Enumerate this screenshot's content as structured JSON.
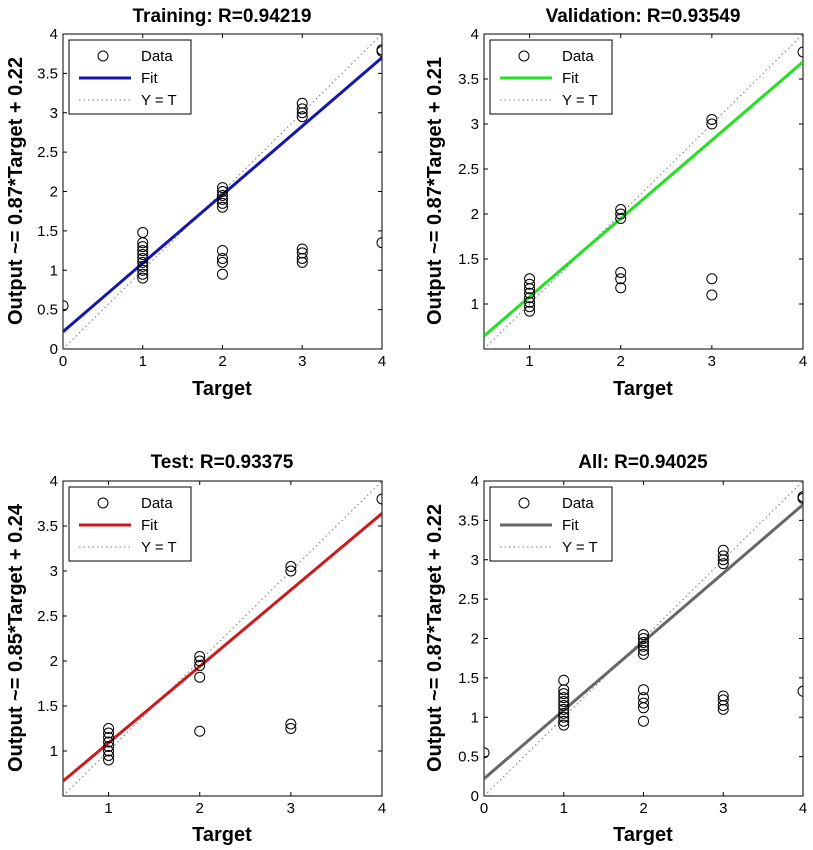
{
  "chart_data": [
    {
      "type": "scatter",
      "title": "Training: R=0.94219",
      "xlabel": "Target",
      "ylabel": "Output ~= 0.87*Target + 0.22",
      "xlim": [
        0,
        4
      ],
      "ylim": [
        0,
        4
      ],
      "xticks": [
        "0",
        "1",
        "2",
        "3",
        "4"
      ],
      "yticks": [
        "0",
        "0.5",
        "1",
        "1.5",
        "2",
        "2.5",
        "3",
        "3.5",
        "4"
      ],
      "fit": {
        "slope": 0.87,
        "intercept": 0.22,
        "color": "#1515b0"
      },
      "legend": {
        "position": "top-left",
        "entries": [
          "Data",
          "Fit",
          "Y = T"
        ]
      },
      "series": [
        {
          "name": "Data",
          "points": [
            [
              0,
              0.55
            ],
            [
              1,
              0.9
            ],
            [
              1,
              0.95
            ],
            [
              1,
              1.0
            ],
            [
              1,
              1.05
            ],
            [
              1,
              1.1
            ],
            [
              1,
              1.15
            ],
            [
              1,
              1.2
            ],
            [
              1,
              1.25
            ],
            [
              1,
              1.3
            ],
            [
              1,
              1.35
            ],
            [
              1,
              1.48
            ],
            [
              2,
              0.95
            ],
            [
              2,
              1.1
            ],
            [
              2,
              1.15
            ],
            [
              2,
              1.25
            ],
            [
              2,
              1.8
            ],
            [
              2,
              1.85
            ],
            [
              2,
              1.9
            ],
            [
              2,
              1.95
            ],
            [
              2,
              2.0
            ],
            [
              2,
              2.05
            ],
            [
              3,
              1.1
            ],
            [
              3,
              1.15
            ],
            [
              3,
              1.22
            ],
            [
              3,
              1.27
            ],
            [
              3,
              2.95
            ],
            [
              3,
              3.0
            ],
            [
              3,
              3.05
            ],
            [
              3,
              3.12
            ],
            [
              4,
              1.35
            ],
            [
              4,
              3.78
            ],
            [
              4,
              3.8
            ]
          ]
        },
        {
          "name": "Fit",
          "points": [
            [
              0,
              0.22
            ],
            [
              4,
              3.7
            ]
          ]
        },
        {
          "name": "Y = T",
          "points": [
            [
              0,
              0
            ],
            [
              4,
              4
            ]
          ]
        }
      ]
    },
    {
      "type": "scatter",
      "title": "Validation: R=0.93549",
      "xlabel": "Target",
      "ylabel": "Output ~= 0.87*Target + 0.21",
      "xlim": [
        0.5,
        4
      ],
      "ylim": [
        0.5,
        4
      ],
      "xticks": [
        "1",
        "2",
        "3",
        "4"
      ],
      "yticks": [
        "1",
        "1.5",
        "2",
        "2.5",
        "3",
        "3.5",
        "4"
      ],
      "fit": {
        "slope": 0.87,
        "intercept": 0.21,
        "color": "#22e022"
      },
      "legend": {
        "position": "top-left",
        "entries": [
          "Data",
          "Fit",
          "Y = T"
        ]
      },
      "series": [
        {
          "name": "Data",
          "points": [
            [
              1,
              0.92
            ],
            [
              1,
              0.97
            ],
            [
              1,
              1.02
            ],
            [
              1,
              1.07
            ],
            [
              1,
              1.12
            ],
            [
              1,
              1.17
            ],
            [
              1,
              1.22
            ],
            [
              1,
              1.28
            ],
            [
              2,
              1.18
            ],
            [
              2,
              1.28
            ],
            [
              2,
              1.35
            ],
            [
              2,
              1.95
            ],
            [
              2,
              2.0
            ],
            [
              2,
              2.05
            ],
            [
              3,
              1.1
            ],
            [
              3,
              1.28
            ],
            [
              3,
              3.0
            ],
            [
              3,
              3.05
            ],
            [
              4,
              3.8
            ]
          ]
        },
        {
          "name": "Fit",
          "points": [
            [
              0.5,
              0.645
            ],
            [
              4,
              3.69
            ]
          ]
        },
        {
          "name": "Y = T",
          "points": [
            [
              0.5,
              0.5
            ],
            [
              4,
              4
            ]
          ]
        }
      ]
    },
    {
      "type": "scatter",
      "title": "Test: R=0.93375",
      "xlabel": "Target",
      "ylabel": "Output ~= 0.85*Target + 0.24",
      "xlim": [
        0.5,
        4
      ],
      "ylim": [
        0.5,
        4
      ],
      "xticks": [
        "1",
        "2",
        "3",
        "4"
      ],
      "yticks": [
        "1",
        "1.5",
        "2",
        "2.5",
        "3",
        "3.5",
        "4"
      ],
      "fit": {
        "slope": 0.85,
        "intercept": 0.24,
        "color": "#cc1a1a"
      },
      "legend": {
        "position": "top-left",
        "entries": [
          "Data",
          "Fit",
          "Y = T"
        ]
      },
      "series": [
        {
          "name": "Data",
          "points": [
            [
              1,
              0.9
            ],
            [
              1,
              0.95
            ],
            [
              1,
              1.0
            ],
            [
              1,
              1.05
            ],
            [
              1,
              1.1
            ],
            [
              1,
              1.15
            ],
            [
              1,
              1.2
            ],
            [
              1,
              1.25
            ],
            [
              2,
              1.22
            ],
            [
              2,
              1.82
            ],
            [
              2,
              1.95
            ],
            [
              2,
              2.0
            ],
            [
              2,
              2.05
            ],
            [
              3,
              1.25
            ],
            [
              3,
              1.3
            ],
            [
              3,
              3.0
            ],
            [
              3,
              3.05
            ],
            [
              4,
              3.8
            ]
          ]
        },
        {
          "name": "Fit",
          "points": [
            [
              0.5,
              0.665
            ],
            [
              4,
              3.64
            ]
          ]
        },
        {
          "name": "Y = T",
          "points": [
            [
              0.5,
              0.5
            ],
            [
              4,
              4
            ]
          ]
        }
      ]
    },
    {
      "type": "scatter",
      "title": "All: R=0.94025",
      "xlabel": "Target",
      "ylabel": "Output ~= 0.87*Target + 0.22",
      "xlim": [
        0,
        4
      ],
      "ylim": [
        0,
        4
      ],
      "xticks": [
        "0",
        "1",
        "2",
        "3",
        "4"
      ],
      "yticks": [
        "0",
        "0.5",
        "1",
        "1.5",
        "2",
        "2.5",
        "3",
        "3.5",
        "4"
      ],
      "fit": {
        "slope": 0.87,
        "intercept": 0.22,
        "color": "#666666"
      },
      "legend": {
        "position": "top-left",
        "entries": [
          "Data",
          "Fit",
          "Y = T"
        ]
      },
      "series": [
        {
          "name": "Data",
          "points": [
            [
              0,
              0.55
            ],
            [
              1,
              0.9
            ],
            [
              1,
              0.95
            ],
            [
              1,
              1.0
            ],
            [
              1,
              1.05
            ],
            [
              1,
              1.1
            ],
            [
              1,
              1.15
            ],
            [
              1,
              1.2
            ],
            [
              1,
              1.25
            ],
            [
              1,
              1.3
            ],
            [
              1,
              1.35
            ],
            [
              1,
              1.47
            ],
            [
              2,
              0.95
            ],
            [
              2,
              1.12
            ],
            [
              2,
              1.18
            ],
            [
              2,
              1.25
            ],
            [
              2,
              1.35
            ],
            [
              2,
              1.8
            ],
            [
              2,
              1.85
            ],
            [
              2,
              1.9
            ],
            [
              2,
              1.95
            ],
            [
              2,
              2.0
            ],
            [
              2,
              2.05
            ],
            [
              3,
              1.1
            ],
            [
              3,
              1.15
            ],
            [
              3,
              1.22
            ],
            [
              3,
              1.27
            ],
            [
              3,
              2.95
            ],
            [
              3,
              3.0
            ],
            [
              3,
              3.05
            ],
            [
              3,
              3.12
            ],
            [
              4,
              1.33
            ],
            [
              4,
              3.78
            ],
            [
              4,
              3.8
            ]
          ]
        },
        {
          "name": "Fit",
          "points": [
            [
              0,
              0.22
            ],
            [
              4,
              3.7
            ]
          ]
        },
        {
          "name": "Y = T",
          "points": [
            [
              0,
              0
            ],
            [
              4,
              4
            ]
          ]
        }
      ]
    }
  ]
}
